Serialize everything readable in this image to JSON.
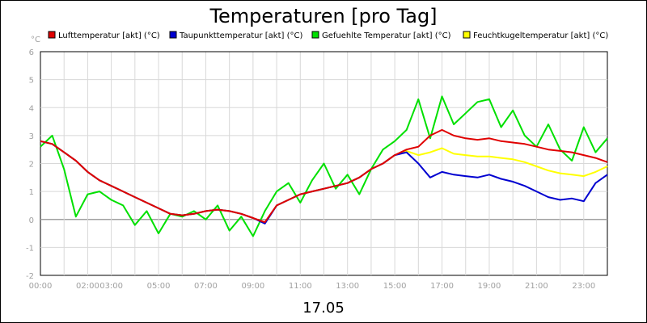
{
  "chart_data": {
    "type": "line",
    "title": "Temperaturen [pro Tag]",
    "unit_label": "°C",
    "xlabel": "17.05",
    "x_ticks": [
      "00:00",
      "02:00",
      "03:00",
      "05:00",
      "07:00",
      "09:00",
      "11:00",
      "13:00",
      "15:00",
      "17:00",
      "19:00",
      "21:00",
      "23:00"
    ],
    "ylim": [
      -2,
      6
    ],
    "y_ticks": [
      "6",
      "5",
      "4",
      "3",
      "2",
      "1",
      "0",
      "-1",
      "-2"
    ],
    "xlim_hours": [
      0,
      24
    ],
    "grid": true,
    "legend_position": "top",
    "series": [
      {
        "name": "Lufttemperatur [akt] (°C)",
        "color": "#e00000",
        "x": [
          0,
          0.5,
          1,
          1.5,
          2,
          2.5,
          3,
          3.5,
          4,
          4.5,
          5,
          5.5,
          6,
          6.5,
          7,
          7.5,
          8,
          8.5,
          9,
          9.5,
          10,
          10.5,
          11,
          11.5,
          12,
          12.5,
          13,
          13.5,
          14,
          14.5,
          15,
          15.5,
          16,
          16.5,
          17,
          17.5,
          18,
          18.5,
          19,
          19.5,
          20,
          20.5,
          21,
          21.5,
          22,
          22.5,
          23,
          23.5,
          24
        ],
        "values": [
          2.8,
          2.7,
          2.4,
          2.1,
          1.7,
          1.4,
          1.2,
          1.0,
          0.8,
          0.6,
          0.4,
          0.2,
          0.15,
          0.2,
          0.3,
          0.35,
          0.3,
          0.2,
          0.05,
          -0.1,
          0.5,
          0.7,
          0.9,
          1.0,
          1.1,
          1.2,
          1.3,
          1.5,
          1.8,
          2.0,
          2.3,
          2.5,
          2.6,
          3.0,
          3.2,
          3.0,
          2.9,
          2.85,
          2.9,
          2.8,
          2.75,
          2.7,
          2.6,
          2.5,
          2.45,
          2.4,
          2.3,
          2.2,
          2.05
        ]
      },
      {
        "name": "Taupunkttemperatur [akt] (°C)",
        "color": "#0000d0",
        "x": [
          0,
          0.5,
          1,
          1.5,
          2,
          2.5,
          3,
          3.5,
          4,
          4.5,
          5,
          5.5,
          6,
          6.5,
          7,
          7.5,
          8,
          8.5,
          9,
          9.5,
          10,
          10.5,
          11,
          11.5,
          12,
          12.5,
          13,
          13.5,
          14,
          14.5,
          15,
          15.5,
          16,
          16.5,
          17,
          17.5,
          18,
          18.5,
          19,
          19.5,
          20,
          20.5,
          21,
          21.5,
          22,
          22.5,
          23,
          23.5,
          24
        ],
        "values": [
          2.8,
          2.7,
          2.4,
          2.1,
          1.7,
          1.4,
          1.2,
          1.0,
          0.8,
          0.6,
          0.4,
          0.2,
          0.15,
          0.2,
          0.3,
          0.35,
          0.3,
          0.2,
          0.05,
          -0.15,
          0.5,
          0.7,
          0.9,
          1.0,
          1.1,
          1.2,
          1.3,
          1.5,
          1.8,
          2.0,
          2.3,
          2.4,
          2.0,
          1.5,
          1.7,
          1.6,
          1.55,
          1.5,
          1.6,
          1.45,
          1.35,
          1.2,
          1.0,
          0.8,
          0.7,
          0.75,
          0.65,
          1.3,
          1.6
        ]
      },
      {
        "name": "Gefuehlte Temperatur [akt] (°C)",
        "color": "#00e000",
        "x": [
          0,
          0.5,
          1,
          1.5,
          2,
          2.5,
          3,
          3.5,
          4,
          4.5,
          5,
          5.5,
          6,
          6.5,
          7,
          7.5,
          8,
          8.5,
          9,
          9.5,
          10,
          10.5,
          11,
          11.5,
          12,
          12.5,
          13,
          13.5,
          14,
          14.5,
          15,
          15.5,
          16,
          16.5,
          17,
          17.5,
          18,
          18.5,
          19,
          19.5,
          20,
          20.5,
          21,
          21.5,
          22,
          22.5,
          23,
          23.5,
          24
        ],
        "values": [
          2.6,
          3.0,
          1.8,
          0.1,
          0.9,
          1.0,
          0.7,
          0.5,
          -0.2,
          0.3,
          -0.5,
          0.2,
          0.1,
          0.3,
          0.0,
          0.5,
          -0.4,
          0.1,
          -0.6,
          0.3,
          1.0,
          1.3,
          0.6,
          1.4,
          2.0,
          1.1,
          1.6,
          0.9,
          1.8,
          2.5,
          2.8,
          3.2,
          4.3,
          2.9,
          4.4,
          3.4,
          3.8,
          4.2,
          4.3,
          3.3,
          3.9,
          3.0,
          2.6,
          3.4,
          2.5,
          2.1,
          3.3,
          2.4,
          2.9
        ]
      },
      {
        "name": "Feuchtkugeltemperatur [akt] (°C)",
        "color": "#ffff00",
        "x": [
          0,
          0.5,
          1,
          1.5,
          2,
          2.5,
          3,
          3.5,
          4,
          4.5,
          5,
          5.5,
          6,
          6.5,
          7,
          7.5,
          8,
          8.5,
          9,
          9.5,
          10,
          10.5,
          11,
          11.5,
          12,
          12.5,
          13,
          13.5,
          14,
          14.5,
          15,
          15.5,
          16,
          16.5,
          17,
          17.5,
          18,
          18.5,
          19,
          19.5,
          20,
          20.5,
          21,
          21.5,
          22,
          22.5,
          23,
          23.5,
          24
        ],
        "values": [
          2.8,
          2.7,
          2.4,
          2.1,
          1.7,
          1.4,
          1.2,
          1.0,
          0.8,
          0.6,
          0.4,
          0.2,
          0.15,
          0.2,
          0.3,
          0.35,
          0.3,
          0.2,
          0.05,
          -0.12,
          0.5,
          0.7,
          0.9,
          1.0,
          1.1,
          1.2,
          1.3,
          1.5,
          1.8,
          2.0,
          2.3,
          2.45,
          2.3,
          2.4,
          2.55,
          2.35,
          2.3,
          2.25,
          2.25,
          2.2,
          2.15,
          2.05,
          1.9,
          1.75,
          1.65,
          1.6,
          1.55,
          1.7,
          1.9
        ]
      }
    ]
  }
}
